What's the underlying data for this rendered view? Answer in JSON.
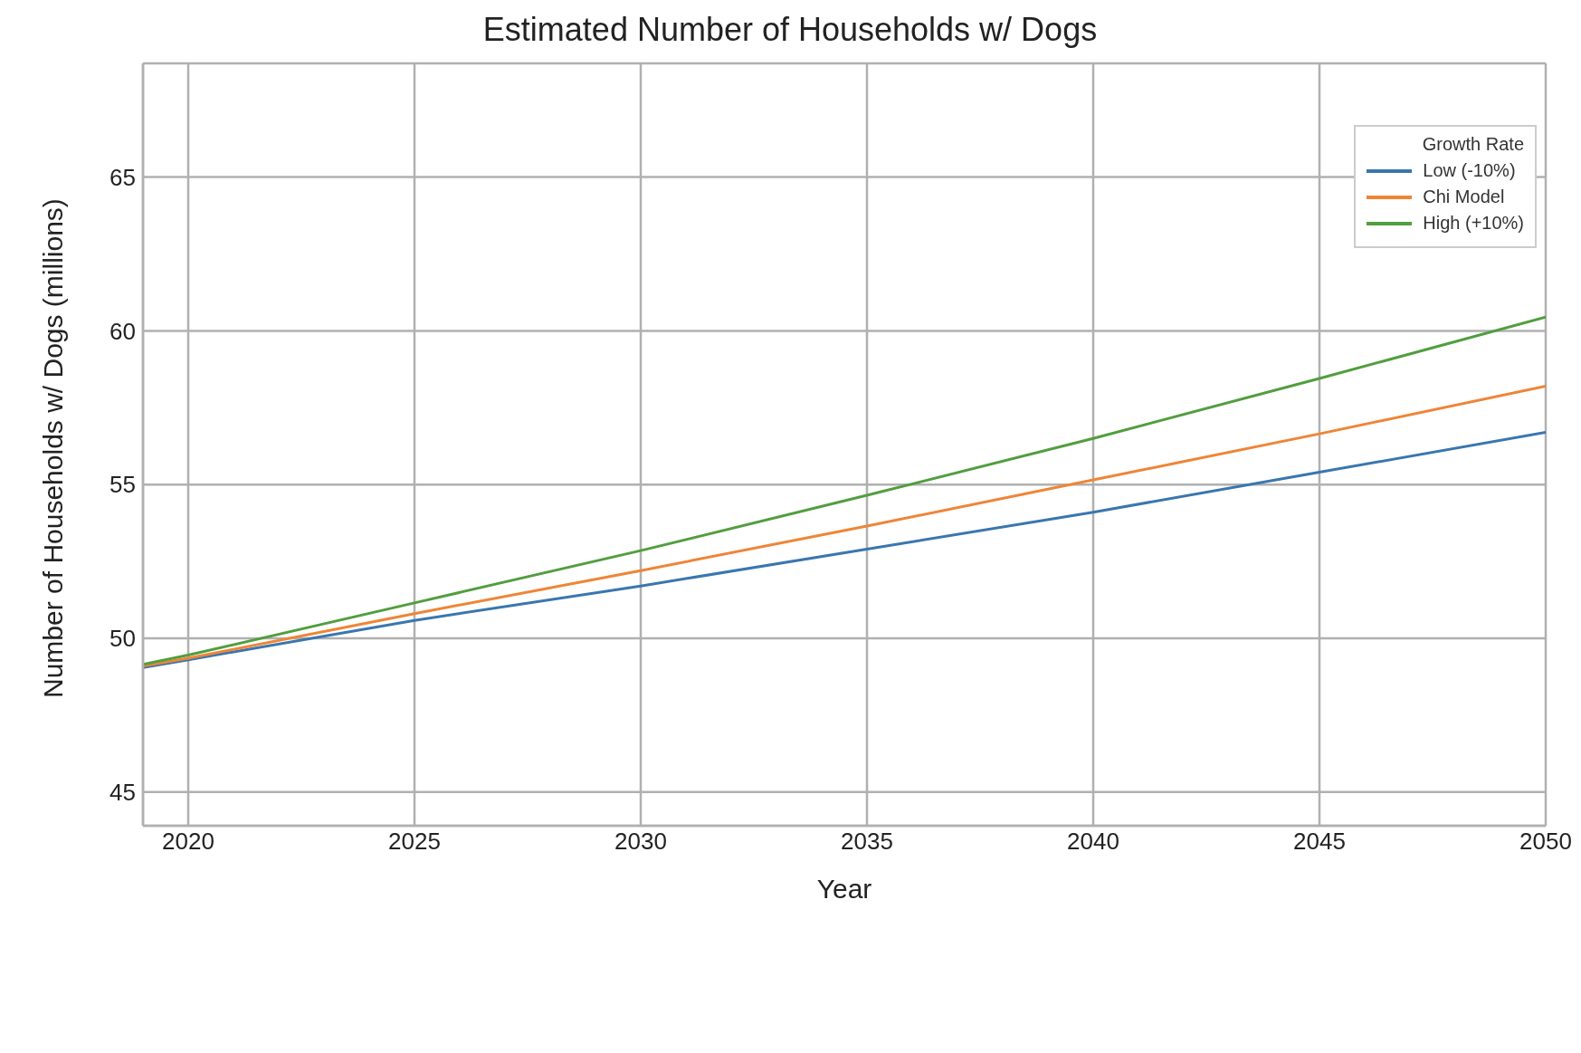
{
  "chart_data": {
    "type": "line",
    "title": "Estimated Number of Households w/ Dogs",
    "xlabel": "Year",
    "ylabel": "Number of Households w/ Dogs (millions)",
    "legend_title": "Growth Rate",
    "x": [
      2019,
      2020,
      2025,
      2030,
      2035,
      2040,
      2045,
      2050
    ],
    "series": [
      {
        "name": "Low (-10%)",
        "color": "#3a76af",
        "values": [
          49.05,
          49.3,
          50.58,
          51.7,
          52.9,
          54.1,
          55.4,
          56.7
        ]
      },
      {
        "name": "Chi Model",
        "color": "#ef8536",
        "values": [
          49.1,
          49.35,
          50.8,
          52.2,
          53.65,
          55.15,
          56.65,
          58.2
        ]
      },
      {
        "name": "High (+10%)",
        "color": "#519e3e",
        "values": [
          49.15,
          49.45,
          51.15,
          52.85,
          54.65,
          56.5,
          58.45,
          60.45
        ]
      }
    ],
    "xlim": [
      2019,
      2050
    ],
    "xticks": [
      2020,
      2025,
      2030,
      2035,
      2040,
      2045,
      2050
    ],
    "ylim": [
      43.9,
      68.7
    ],
    "yticks": [
      45,
      50,
      55,
      60,
      65
    ],
    "grid": true,
    "legend": "top right",
    "marker": "none",
    "line_style": "solid"
  }
}
